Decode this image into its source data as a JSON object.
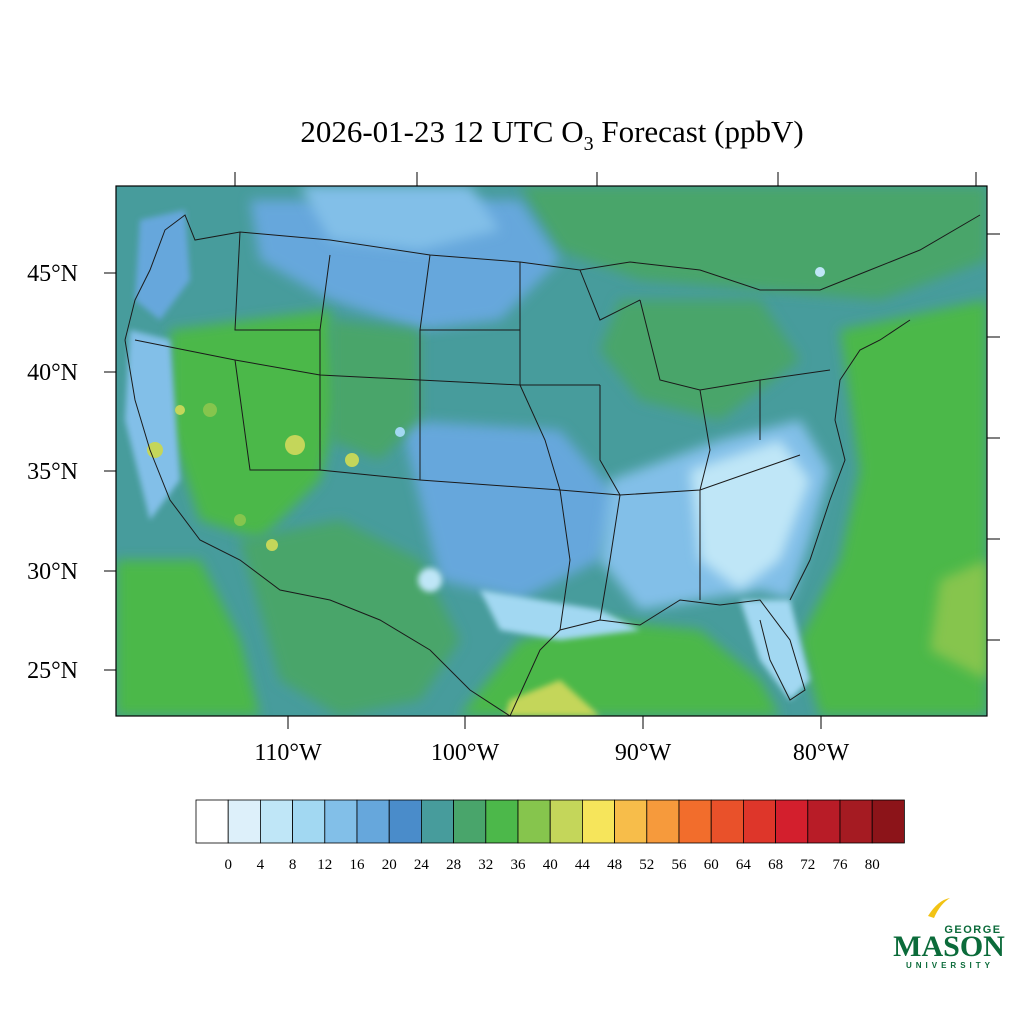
{
  "title": {
    "prefix": "2026-01-23 12 UTC O",
    "subscript": "3",
    "suffix": " Forecast (ppbV)"
  },
  "map": {
    "lat_labels": [
      "45°N",
      "40°N",
      "35°N",
      "30°N",
      "25°N"
    ],
    "lon_labels": [
      "110°W",
      "100°W",
      "90°W",
      "80°W"
    ]
  },
  "colorbar": {
    "labels": [
      "0",
      "4",
      "8",
      "12",
      "16",
      "20",
      "24",
      "28",
      "32",
      "36",
      "40",
      "44",
      "48",
      "52",
      "56",
      "60",
      "64",
      "68",
      "72",
      "76",
      "80"
    ],
    "colors": [
      "#ffffff",
      "#ddf0fa",
      "#bfe6f7",
      "#a2d8f2",
      "#82bfe8",
      "#66a7dc",
      "#4a8cca",
      "#479c9c",
      "#49a56b",
      "#4cb84a",
      "#86c54d",
      "#c4d65a",
      "#f6e55b",
      "#f7bd4a",
      "#f69a3c",
      "#f26d2c",
      "#e9512a",
      "#de362a",
      "#d31f2d",
      "#b81c27",
      "#a51b22",
      "#8c1419"
    ]
  },
  "logo": {
    "top": "GEORGE",
    "main": "MASON",
    "bottom": "UNIVERSITY"
  }
}
